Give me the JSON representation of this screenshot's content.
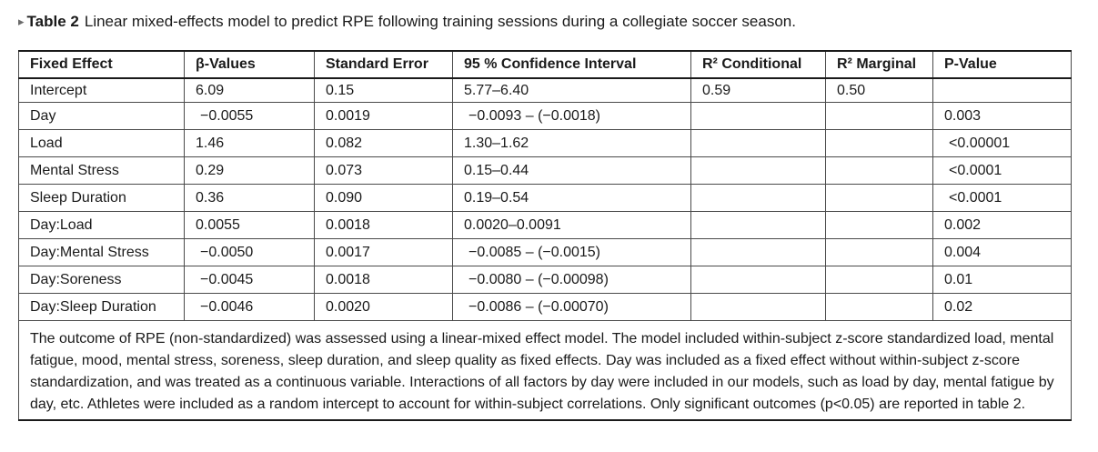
{
  "caption": {
    "marker": "▸",
    "label": "Table 2",
    "text": "Linear mixed-effects model to predict RPE following training sessions during a collegiate soccer season."
  },
  "table": {
    "headers": [
      "Fixed Effect",
      "β-Values",
      "Standard Error",
      "95 % Confidence Interval",
      "R² Conditional",
      "R² Marginal",
      "P-Value"
    ],
    "rows": [
      [
        "Intercept",
        "6.09",
        "0.15",
        "5.77–6.40",
        "0.59",
        "0.50",
        ""
      ],
      [
        "Day",
        "−0.0055",
        "0.0019",
        "−0.0093 – (−0.0018)",
        "",
        "",
        "0.003"
      ],
      [
        "Load",
        "1.46",
        "0.082",
        "1.30–1.62",
        "",
        "",
        "<0.00001"
      ],
      [
        "Mental Stress",
        "0.29",
        "0.073",
        "0.15–0.44",
        "",
        "",
        "<0.0001"
      ],
      [
        "Sleep Duration",
        "0.36",
        "0.090",
        "0.19–0.54",
        "",
        "",
        "<0.0001"
      ],
      [
        "Day:Load",
        "0.0055",
        "0.0018",
        "0.0020–0.0091",
        "",
        "",
        "0.002"
      ],
      [
        "Day:Mental Stress",
        "−0.0050",
        "0.0017",
        "−0.0085 – (−0.0015)",
        "",
        "",
        "0.004"
      ],
      [
        "Day:Soreness",
        "−0.0045",
        "0.0018",
        "−0.0080 – (−0.00098)",
        "",
        "",
        "0.01"
      ],
      [
        "Day:Sleep Duration",
        "−0.0046",
        "0.0020",
        "−0.0086 – (−0.00070)",
        "",
        "",
        "0.02"
      ]
    ],
    "footnote": "The outcome of RPE (non-standardized) was assessed using a linear-mixed effect model. The model included within-subject z-score standardized load, mental fatigue, mood, mental stress, soreness, sleep duration, and sleep quality as fixed effects. Day was included as a fixed effect without within-subject z-score standardization, and was treated as a continuous variable. Interactions of all factors by day were included in our models, such as load by day, mental fatigue by day, etc. Athletes were included as a random intercept to account for within-subject correlations. Only significant outcomes (p<0.05) are reported in table 2."
  }
}
